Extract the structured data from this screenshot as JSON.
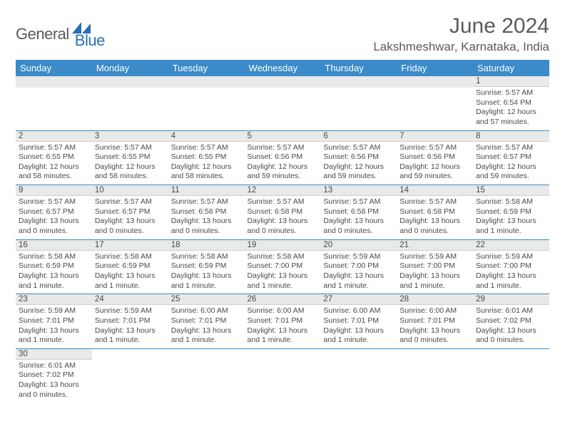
{
  "brand": {
    "text_general": "General",
    "text_blue": "Blue",
    "shape_color": "#2a6fb5"
  },
  "header": {
    "month_title": "June 2024",
    "location": "Lakshmeshwar, Karnataka, India"
  },
  "colors": {
    "header_bg": "#3b8bc9",
    "header_text": "#ffffff",
    "daynum_bg": "#e9e9e9",
    "row_border": "#3b8bc9",
    "body_text": "#4a4a4a",
    "title_text": "#5a5a5a"
  },
  "weekdays": [
    "Sunday",
    "Monday",
    "Tuesday",
    "Wednesday",
    "Thursday",
    "Friday",
    "Saturday"
  ],
  "weeks": [
    [
      null,
      null,
      null,
      null,
      null,
      null,
      {
        "n": "1",
        "sr": "5:57 AM",
        "ss": "6:54 PM",
        "dl": "12 hours and 57 minutes."
      }
    ],
    [
      {
        "n": "2",
        "sr": "5:57 AM",
        "ss": "6:55 PM",
        "dl": "12 hours and 58 minutes."
      },
      {
        "n": "3",
        "sr": "5:57 AM",
        "ss": "6:55 PM",
        "dl": "12 hours and 58 minutes."
      },
      {
        "n": "4",
        "sr": "5:57 AM",
        "ss": "6:55 PM",
        "dl": "12 hours and 58 minutes."
      },
      {
        "n": "5",
        "sr": "5:57 AM",
        "ss": "6:56 PM",
        "dl": "12 hours and 59 minutes."
      },
      {
        "n": "6",
        "sr": "5:57 AM",
        "ss": "6:56 PM",
        "dl": "12 hours and 59 minutes."
      },
      {
        "n": "7",
        "sr": "5:57 AM",
        "ss": "6:56 PM",
        "dl": "12 hours and 59 minutes."
      },
      {
        "n": "8",
        "sr": "5:57 AM",
        "ss": "6:57 PM",
        "dl": "12 hours and 59 minutes."
      }
    ],
    [
      {
        "n": "9",
        "sr": "5:57 AM",
        "ss": "6:57 PM",
        "dl": "13 hours and 0 minutes."
      },
      {
        "n": "10",
        "sr": "5:57 AM",
        "ss": "6:57 PM",
        "dl": "13 hours and 0 minutes."
      },
      {
        "n": "11",
        "sr": "5:57 AM",
        "ss": "6:58 PM",
        "dl": "13 hours and 0 minutes."
      },
      {
        "n": "12",
        "sr": "5:57 AM",
        "ss": "6:58 PM",
        "dl": "13 hours and 0 minutes."
      },
      {
        "n": "13",
        "sr": "5:57 AM",
        "ss": "6:58 PM",
        "dl": "13 hours and 0 minutes."
      },
      {
        "n": "14",
        "sr": "5:57 AM",
        "ss": "6:58 PM",
        "dl": "13 hours and 0 minutes."
      },
      {
        "n": "15",
        "sr": "5:58 AM",
        "ss": "6:59 PM",
        "dl": "13 hours and 1 minute."
      }
    ],
    [
      {
        "n": "16",
        "sr": "5:58 AM",
        "ss": "6:59 PM",
        "dl": "13 hours and 1 minute."
      },
      {
        "n": "17",
        "sr": "5:58 AM",
        "ss": "6:59 PM",
        "dl": "13 hours and 1 minute."
      },
      {
        "n": "18",
        "sr": "5:58 AM",
        "ss": "6:59 PM",
        "dl": "13 hours and 1 minute."
      },
      {
        "n": "19",
        "sr": "5:58 AM",
        "ss": "7:00 PM",
        "dl": "13 hours and 1 minute."
      },
      {
        "n": "20",
        "sr": "5:59 AM",
        "ss": "7:00 PM",
        "dl": "13 hours and 1 minute."
      },
      {
        "n": "21",
        "sr": "5:59 AM",
        "ss": "7:00 PM",
        "dl": "13 hours and 1 minute."
      },
      {
        "n": "22",
        "sr": "5:59 AM",
        "ss": "7:00 PM",
        "dl": "13 hours and 1 minute."
      }
    ],
    [
      {
        "n": "23",
        "sr": "5:59 AM",
        "ss": "7:01 PM",
        "dl": "13 hours and 1 minute."
      },
      {
        "n": "24",
        "sr": "5:59 AM",
        "ss": "7:01 PM",
        "dl": "13 hours and 1 minute."
      },
      {
        "n": "25",
        "sr": "6:00 AM",
        "ss": "7:01 PM",
        "dl": "13 hours and 1 minute."
      },
      {
        "n": "26",
        "sr": "6:00 AM",
        "ss": "7:01 PM",
        "dl": "13 hours and 1 minute."
      },
      {
        "n": "27",
        "sr": "6:00 AM",
        "ss": "7:01 PM",
        "dl": "13 hours and 1 minute."
      },
      {
        "n": "28",
        "sr": "6:00 AM",
        "ss": "7:01 PM",
        "dl": "13 hours and 0 minutes."
      },
      {
        "n": "29",
        "sr": "6:01 AM",
        "ss": "7:02 PM",
        "dl": "13 hours and 0 minutes."
      }
    ],
    [
      {
        "n": "30",
        "sr": "6:01 AM",
        "ss": "7:02 PM",
        "dl": "13 hours and 0 minutes."
      },
      null,
      null,
      null,
      null,
      null,
      null
    ]
  ],
  "labels": {
    "sunrise": "Sunrise:",
    "sunset": "Sunset:",
    "daylight": "Daylight:"
  }
}
